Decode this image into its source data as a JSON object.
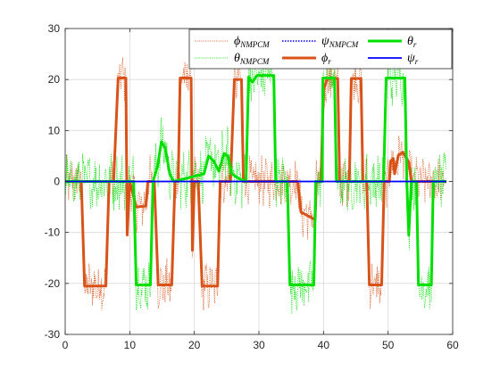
{
  "chart_data": {
    "type": "line",
    "title": "",
    "xlabel": "",
    "ylabel": "",
    "xlim": [
      0,
      60
    ],
    "ylim": [
      -30,
      30
    ],
    "xticks": [
      0,
      10,
      20,
      30,
      40,
      50,
      60
    ],
    "yticks": [
      -30,
      -20,
      -10,
      0,
      10,
      20,
      30
    ],
    "grid": true,
    "legend_position": "top-right",
    "legend": [
      {
        "label": "ϕ",
        "sub": "NMPCM",
        "series": "phi_nmpcm"
      },
      {
        "label": "ψ",
        "sub": "NMPCM",
        "series": "psi_nmpcm"
      },
      {
        "label": "θ",
        "sub": "r",
        "series": "theta_r"
      },
      {
        "label": "θ",
        "sub": "NMPCM",
        "series": "theta_nmpcm"
      },
      {
        "label": "ϕ",
        "sub": "r",
        "series": "phi_r"
      },
      {
        "label": "ψ",
        "sub": "r",
        "series": "psi_r"
      }
    ],
    "series": [
      {
        "id": "phi_r",
        "color": "#D95319",
        "style": "solid-thick",
        "points": [
          [
            0,
            0
          ],
          [
            2.5,
            0
          ],
          [
            3,
            -20.5
          ],
          [
            6.3,
            -20.5
          ],
          [
            6.8,
            0
          ],
          [
            7.5,
            0
          ],
          [
            8.2,
            20.3
          ],
          [
            9.4,
            20.3
          ],
          [
            9.6,
            -10.5
          ],
          [
            10,
            0
          ],
          [
            11,
            -5
          ],
          [
            12.5,
            -4.8
          ],
          [
            12.8,
            0
          ],
          [
            13.8,
            0
          ],
          [
            14.4,
            -20.3
          ],
          [
            16.5,
            -20.3
          ],
          [
            17,
            0
          ],
          [
            17.5,
            0
          ],
          [
            17.8,
            20.3
          ],
          [
            19.5,
            20.3
          ],
          [
            19.7,
            -13.5
          ],
          [
            20,
            0
          ],
          [
            20.6,
            0
          ],
          [
            21.2,
            -20.5
          ],
          [
            23.6,
            -20.5
          ],
          [
            24,
            0
          ],
          [
            25.2,
            0
          ],
          [
            25.6,
            0
          ],
          [
            26.2,
            20
          ],
          [
            27.3,
            20
          ],
          [
            27.6,
            0
          ],
          [
            36,
            0
          ],
          [
            36.5,
            -6
          ],
          [
            38.7,
            -7.5
          ],
          [
            38.9,
            0
          ],
          [
            39.6,
            0
          ],
          [
            40,
            18
          ],
          [
            40.6,
            20.2
          ],
          [
            42.2,
            20.2
          ],
          [
            42.5,
            0
          ],
          [
            44,
            0
          ],
          [
            44.3,
            20.2
          ],
          [
            45.8,
            20.2
          ],
          [
            46.1,
            0
          ],
          [
            46.7,
            0
          ],
          [
            47.1,
            -20.3
          ],
          [
            49,
            -20.3
          ],
          [
            49.4,
            0
          ],
          [
            50.2,
            0
          ],
          [
            50.4,
            4
          ],
          [
            50.8,
            4.5
          ],
          [
            51,
            1.5
          ],
          [
            51.6,
            5.2
          ],
          [
            52.3,
            5.7
          ],
          [
            53.2,
            3.8
          ],
          [
            53.6,
            0
          ],
          [
            59,
            0
          ]
        ]
      },
      {
        "id": "theta_r",
        "color": "#00E000",
        "style": "solid-thick",
        "points": [
          [
            0,
            0
          ],
          [
            10.6,
            0
          ],
          [
            11,
            -20.3
          ],
          [
            13.2,
            -20.3
          ],
          [
            13.6,
            0
          ],
          [
            14.3,
            3
          ],
          [
            14.9,
            7.8
          ],
          [
            15.5,
            6.5
          ],
          [
            16.2,
            1.5
          ],
          [
            16.8,
            0
          ],
          [
            21.5,
            1.5
          ],
          [
            22.2,
            5
          ],
          [
            23,
            4
          ],
          [
            23.8,
            2
          ],
          [
            24.6,
            5.5
          ],
          [
            25.2,
            5
          ],
          [
            25.8,
            1.5
          ],
          [
            26.6,
            0.8
          ],
          [
            27,
            0.5
          ],
          [
            28,
            0
          ],
          [
            28.4,
            20.5
          ],
          [
            29,
            19.5
          ],
          [
            29.7,
            20.8
          ],
          [
            32.3,
            20.8
          ],
          [
            32.6,
            0
          ],
          [
            34.4,
            0
          ],
          [
            34.8,
            -20.3
          ],
          [
            38.5,
            -20.3
          ],
          [
            38.8,
            0
          ],
          [
            39.8,
            0
          ],
          [
            39.9,
            20.3
          ],
          [
            41.7,
            20.3
          ],
          [
            42,
            0
          ],
          [
            49.3,
            0
          ],
          [
            49.7,
            20.3
          ],
          [
            52.6,
            20.3
          ],
          [
            52.9,
            0
          ],
          [
            53.2,
            -10.5
          ],
          [
            53.6,
            0
          ],
          [
            54.4,
            0
          ],
          [
            54.7,
            -20.3
          ],
          [
            56.7,
            -20.3
          ],
          [
            57,
            0
          ],
          [
            59,
            0
          ]
        ]
      },
      {
        "id": "phi_nmpcm",
        "color": "#D95319",
        "style": "dotted-noisy",
        "noise_amplitude": 4,
        "follows": "phi_r"
      },
      {
        "id": "theta_nmpcm",
        "color": "#00E000",
        "style": "dotted-noisy",
        "noise_amplitude": 4.5,
        "follows": "theta_r"
      },
      {
        "id": "psi_nmpcm",
        "color": "#0000FF",
        "style": "dotted",
        "points": [
          [
            0,
            0
          ],
          [
            59,
            0
          ]
        ]
      },
      {
        "id": "psi_r",
        "color": "#0000FF",
        "style": "solid",
        "points": [
          [
            0,
            0
          ],
          [
            59,
            0
          ]
        ]
      }
    ]
  }
}
